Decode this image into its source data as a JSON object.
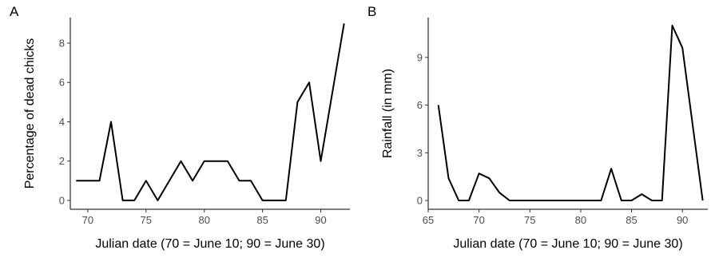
{
  "chart_data": [
    {
      "type": "line",
      "panel_label": "A",
      "xlabel": "Julian date (70 = June 10; 90 = June 30)",
      "ylabel": "Percentage of dead chicks",
      "xlim": [
        68.5,
        92.5
      ],
      "ylim": [
        -0.45,
        9.3
      ],
      "xticks": [
        70,
        75,
        80,
        85,
        90
      ],
      "yticks": [
        0,
        2,
        4,
        6,
        8
      ],
      "grid": false,
      "series": [
        {
          "x": [
            69,
            70,
            71,
            72,
            73,
            74,
            75,
            76,
            77,
            78,
            79,
            80,
            81,
            82,
            83,
            84,
            85,
            86,
            87,
            88,
            89,
            90,
            91,
            92
          ],
          "y": [
            1,
            1,
            1,
            4,
            0,
            0,
            1,
            0,
            1,
            2,
            1,
            2,
            2,
            2,
            1,
            1,
            0,
            0,
            0,
            5,
            6,
            2,
            5.5,
            9
          ]
        }
      ]
    },
    {
      "type": "line",
      "panel_label": "B",
      "xlabel": "Julian date (70 = June 10; 90 = June 30)",
      "ylabel": "Rainfall (in mm)",
      "xlim": [
        65,
        92.5
      ],
      "ylim": [
        -0.55,
        11.5
      ],
      "xticks": [
        65,
        70,
        75,
        80,
        85,
        90
      ],
      "yticks": [
        0,
        3,
        6,
        9
      ],
      "grid": false,
      "series": [
        {
          "x": [
            66,
            67,
            68,
            69,
            70,
            71,
            72,
            73,
            74,
            75,
            76,
            77,
            78,
            79,
            80,
            81,
            82,
            83,
            84,
            85,
            86,
            87,
            88,
            89,
            90,
            91,
            92
          ],
          "y": [
            6,
            1.4,
            0,
            0,
            1.7,
            1.4,
            0.5,
            0,
            0,
            0,
            0,
            0,
            0,
            0,
            0,
            0,
            0,
            2,
            0,
            0,
            0.4,
            0,
            0,
            11,
            9.6,
            4.8,
            0
          ]
        }
      ]
    }
  ]
}
